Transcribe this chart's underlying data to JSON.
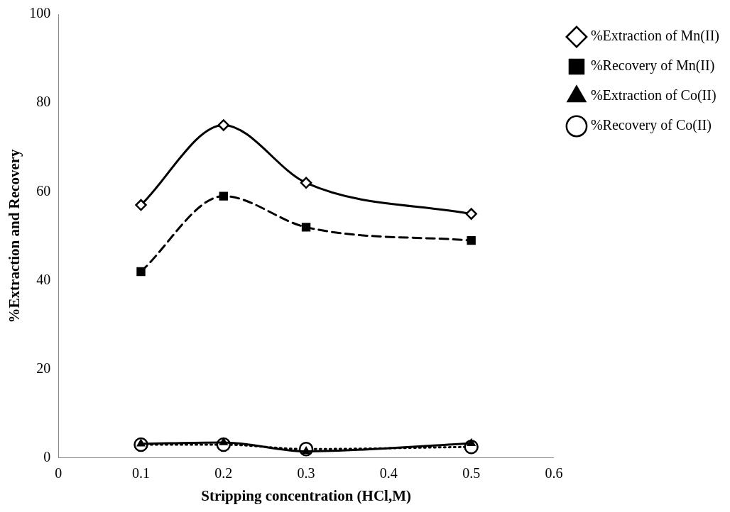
{
  "chart_data": {
    "type": "line",
    "xlabel": "Stripping concentration (HCl,M)",
    "ylabel": "%Extraction and Recovery",
    "x": [
      0.1,
      0.2,
      0.3,
      0.5
    ],
    "xlim": [
      0,
      0.6
    ],
    "xticks": [
      0,
      0.1,
      0.2,
      0.3,
      0.4,
      0.5,
      0.6
    ],
    "ylim": [
      0,
      100
    ],
    "yticks": [
      0,
      20,
      40,
      60,
      80,
      100
    ],
    "grid": false,
    "legend": "right",
    "series": [
      {
        "name": "%Extraction of Mn(II)",
        "color": "#000000",
        "values": [
          57,
          75,
          62,
          55
        ],
        "marker": "diamond",
        "line_style": "solid"
      },
      {
        "name": "%Recovery of Mn(II)",
        "color": "#000000",
        "values": [
          42,
          59,
          52,
          49
        ],
        "marker": "square",
        "line_style": "dashed"
      },
      {
        "name": "%Extraction of Co(II)",
        "color": "#000000",
        "values": [
          3.2,
          3.5,
          1.5,
          3.3
        ],
        "marker": "triangle",
        "line_style": "solid"
      },
      {
        "name": "%Recovery of Co(II)",
        "color": "#000000",
        "values": [
          3,
          3,
          2,
          2.5
        ],
        "marker": "circle",
        "line_style": "dotted"
      }
    ]
  }
}
